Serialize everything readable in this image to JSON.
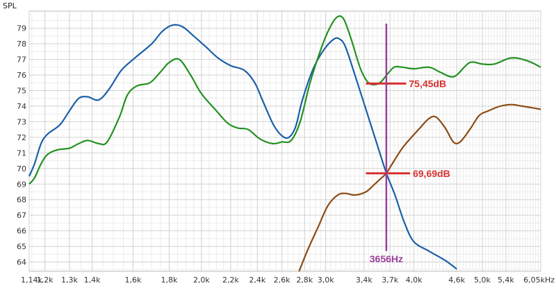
{
  "chart_data": {
    "type": "line",
    "title": "",
    "ylabel": "SPL",
    "xlabel": "",
    "x_scale": "log",
    "xlim": [
      1140,
      6050
    ],
    "ylim": [
      63.4,
      80.1
    ],
    "grid": true,
    "x_ticks": [
      {
        "value": 1140,
        "label": "1,14k"
      },
      {
        "value": 1200,
        "label": "1,2k"
      },
      {
        "value": 1300,
        "label": "1,3k"
      },
      {
        "value": 1400,
        "label": "1,4k"
      },
      {
        "value": 1600,
        "label": "1,6k"
      },
      {
        "value": 1800,
        "label": "1,8k"
      },
      {
        "value": 2000,
        "label": "2,0k"
      },
      {
        "value": 2200,
        "label": "2,2k"
      },
      {
        "value": 2400,
        "label": "2,4k"
      },
      {
        "value": 2600,
        "label": "2,6k"
      },
      {
        "value": 2800,
        "label": "2,8k"
      },
      {
        "value": 3000,
        "label": "3,0k"
      },
      {
        "value": 3400,
        "label": "3,4k"
      },
      {
        "value": 3700,
        "label": "3,7k"
      },
      {
        "value": 4000,
        "label": "4,0k"
      },
      {
        "value": 4600,
        "label": "4,6k"
      },
      {
        "value": 5000,
        "label": "5,0k"
      },
      {
        "value": 5400,
        "label": "5,4k"
      },
      {
        "value": 6050,
        "label": "6,05kHz"
      }
    ],
    "y_ticks": [
      64,
      65,
      66,
      67,
      68,
      69,
      70,
      71,
      72,
      73,
      74,
      75,
      76,
      77,
      78,
      79
    ],
    "series": [
      {
        "color": "#1a5fa8",
        "points": [
          [
            1140,
            69.5
          ],
          [
            1160,
            70.3
          ],
          [
            1185,
            71.6
          ],
          [
            1210,
            72.2
          ],
          [
            1260,
            72.8
          ],
          [
            1300,
            73.7
          ],
          [
            1340,
            74.5
          ],
          [
            1380,
            74.6
          ],
          [
            1430,
            74.4
          ],
          [
            1480,
            75.1
          ],
          [
            1540,
            76.3
          ],
          [
            1610,
            77.1
          ],
          [
            1700,
            78.0
          ],
          [
            1760,
            78.8
          ],
          [
            1820,
            79.2
          ],
          [
            1880,
            79.1
          ],
          [
            1950,
            78.5
          ],
          [
            2030,
            77.8
          ],
          [
            2110,
            77.1
          ],
          [
            2200,
            76.6
          ],
          [
            2300,
            76.3
          ],
          [
            2380,
            75.5
          ],
          [
            2450,
            74.2
          ],
          [
            2530,
            72.8
          ],
          [
            2600,
            72.1
          ],
          [
            2660,
            72.0
          ],
          [
            2720,
            72.7
          ],
          [
            2780,
            74.4
          ],
          [
            2880,
            76.4
          ],
          [
            2980,
            77.6
          ],
          [
            3080,
            78.3
          ],
          [
            3140,
            78.3
          ],
          [
            3200,
            77.8
          ],
          [
            3300,
            76.0
          ],
          [
            3420,
            73.8
          ],
          [
            3550,
            71.5
          ],
          [
            3656,
            69.7
          ],
          [
            3760,
            68.3
          ],
          [
            3880,
            66.5
          ],
          [
            4000,
            65.3
          ],
          [
            4200,
            64.7
          ],
          [
            4430,
            64.1
          ],
          [
            4600,
            63.55
          ]
        ]
      },
      {
        "color": "#22911f",
        "points": [
          [
            1140,
            69.0
          ],
          [
            1160,
            69.4
          ],
          [
            1185,
            70.3
          ],
          [
            1210,
            70.9
          ],
          [
            1250,
            71.2
          ],
          [
            1300,
            71.3
          ],
          [
            1340,
            71.6
          ],
          [
            1380,
            71.8
          ],
          [
            1430,
            71.6
          ],
          [
            1470,
            71.7
          ],
          [
            1530,
            73.3
          ],
          [
            1570,
            74.7
          ],
          [
            1620,
            75.3
          ],
          [
            1690,
            75.5
          ],
          [
            1750,
            76.2
          ],
          [
            1800,
            76.8
          ],
          [
            1860,
            77.0
          ],
          [
            1930,
            76.0
          ],
          [
            2000,
            74.8
          ],
          [
            2100,
            73.7
          ],
          [
            2180,
            72.9
          ],
          [
            2250,
            72.6
          ],
          [
            2330,
            72.5
          ],
          [
            2420,
            71.9
          ],
          [
            2520,
            71.6
          ],
          [
            2600,
            71.7
          ],
          [
            2680,
            71.8
          ],
          [
            2760,
            73.0
          ],
          [
            2850,
            75.5
          ],
          [
            2950,
            77.6
          ],
          [
            3030,
            78.9
          ],
          [
            3110,
            79.7
          ],
          [
            3180,
            79.6
          ],
          [
            3260,
            78.3
          ],
          [
            3360,
            76.4
          ],
          [
            3450,
            75.5
          ],
          [
            3540,
            75.4
          ],
          [
            3600,
            75.6
          ],
          [
            3660,
            76.0
          ],
          [
            3750,
            76.5
          ],
          [
            3850,
            76.5
          ],
          [
            4000,
            76.4
          ],
          [
            4200,
            76.5
          ],
          [
            4350,
            76.2
          ],
          [
            4500,
            75.9
          ],
          [
            4600,
            76.0
          ],
          [
            4800,
            76.8
          ],
          [
            5000,
            76.7
          ],
          [
            5200,
            76.7
          ],
          [
            5500,
            77.1
          ],
          [
            5800,
            76.9
          ],
          [
            6050,
            76.5
          ]
        ]
      },
      {
        "color": "#8b4a12",
        "points": [
          [
            2750,
            63.4
          ],
          [
            2830,
            64.8
          ],
          [
            2930,
            66.3
          ],
          [
            3020,
            67.6
          ],
          [
            3120,
            68.3
          ],
          [
            3200,
            68.4
          ],
          [
            3300,
            68.3
          ],
          [
            3420,
            68.5
          ],
          [
            3520,
            69.0
          ],
          [
            3600,
            69.4
          ],
          [
            3656,
            69.7
          ],
          [
            3750,
            70.5
          ],
          [
            3850,
            71.3
          ],
          [
            3950,
            71.9
          ],
          [
            4080,
            72.6
          ],
          [
            4200,
            73.2
          ],
          [
            4300,
            73.3
          ],
          [
            4430,
            72.6
          ],
          [
            4550,
            71.7
          ],
          [
            4650,
            71.7
          ],
          [
            4800,
            72.5
          ],
          [
            4950,
            73.4
          ],
          [
            5100,
            73.7
          ],
          [
            5300,
            74.0
          ],
          [
            5500,
            74.1
          ],
          [
            5700,
            74.0
          ],
          [
            6050,
            73.8
          ]
        ]
      }
    ],
    "annotations": {
      "vertical_line": {
        "x": 3656,
        "y_from": 64.7,
        "y_to": 79.3,
        "color": "#9b3f9b",
        "label": "3656Hz"
      },
      "markers": [
        {
          "x_from": 3420,
          "x_to": 3900,
          "y": 75.45,
          "color": "#d93030",
          "label": "75,45dB"
        },
        {
          "x_from": 3420,
          "x_to": 3950,
          "y": 69.69,
          "color": "#d93030",
          "label": "69,69dB"
        }
      ]
    }
  }
}
